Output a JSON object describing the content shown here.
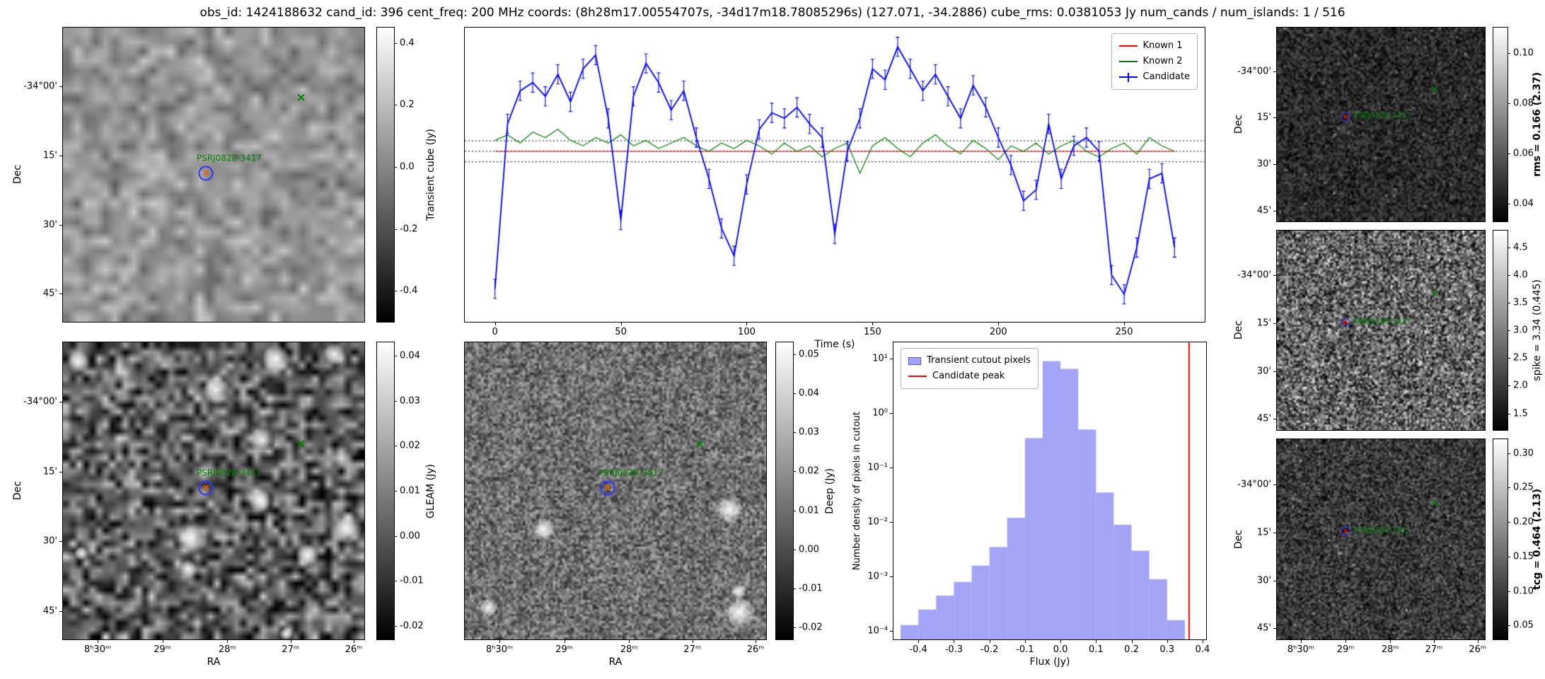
{
  "title": "obs_id: 1424188632 cand_id: 396 cent_freq: 200 MHz coords: (8h28m17.00554707s, -34d17m18.78085296s) (127.071, -34.2886) cube_rms: 0.0381053 Jy num_cands / num_islands: 1 / 516",
  "source_label": "PSRJ0828-3417",
  "glyphs": {
    "cross": "×"
  },
  "colors": {
    "annotation": "#008000",
    "cand_ring": "#3333ff",
    "cand_x": "#ff5500",
    "cand_dot": "#cc0000",
    "known1": "#ff0000",
    "known2": "#008000",
    "candidate": "#0000ff"
  },
  "axes": {
    "dec_label": "Dec",
    "ra_label": "RA",
    "dec_ticks": [
      "-34°00'",
      "15'",
      "30'",
      "45'"
    ],
    "ra_ticks": [
      "8ʰ30ᵐ",
      "29ᵐ",
      "28ᵐ",
      "27ᵐ",
      "26ᵐ"
    ]
  },
  "colorbars": {
    "transient": {
      "label": "Transient cube (Jy)",
      "vmin": -0.5,
      "vmax": 0.45,
      "ticks": [
        "0.4",
        "0.2",
        "0.0",
        "-0.2",
        "-0.4"
      ],
      "bold": false
    },
    "gleam": {
      "label": "GLEAM (Jy)",
      "vmin": -0.023,
      "vmax": 0.043,
      "ticks": [
        "0.04",
        "0.03",
        "0.02",
        "0.01",
        "0.00",
        "-0.01",
        "-0.02"
      ],
      "bold": false
    },
    "deep": {
      "label": "Deep (Jy)",
      "vmin": -0.023,
      "vmax": 0.053,
      "ticks": [
        "0.05",
        "0.04",
        "0.03",
        "0.02",
        "0.01",
        "0.00",
        "-0.01",
        "-0.02"
      ],
      "bold": false
    },
    "rms": {
      "label": "rms = 0.166 (2.37)",
      "vmin": 0.033,
      "vmax": 0.11,
      "ticks": [
        "0.10",
        "0.08",
        "0.06",
        "0.04"
      ],
      "bold": true
    },
    "spike": {
      "label": "spike = 3.34 (0.445)",
      "vmin": 1.2,
      "vmax": 4.8,
      "ticks": [
        "4.5",
        "4.0",
        "3.5",
        "3.0",
        "2.5",
        "2.0",
        "1.5"
      ],
      "bold": false
    },
    "tcg": {
      "label": "tcg = 0.464 (2.13)",
      "vmin": 0.03,
      "vmax": 0.32,
      "ticks": [
        "0.30",
        "0.25",
        "0.20",
        "0.15",
        "0.10",
        "0.05"
      ],
      "bold": true
    }
  },
  "panels": {
    "transient": {
      "cross": [
        0.79,
        0.24
      ],
      "cand": [
        0.475,
        0.495
      ],
      "label_pos": "above",
      "small": false
    },
    "gleam": {
      "cross": [
        0.79,
        0.345
      ],
      "cand": [
        0.475,
        0.49
      ],
      "label_pos": "above",
      "small": false
    },
    "deep": {
      "cross": [
        0.78,
        0.345
      ],
      "cand": [
        0.475,
        0.49
      ],
      "label_pos": "above",
      "small": false
    },
    "rms": {
      "cross": [
        0.76,
        0.32
      ],
      "cand": [
        0.33,
        0.46
      ],
      "label_pos": "right",
      "small": true
    },
    "spike": {
      "cross": [
        0.76,
        0.32
      ],
      "cand": [
        0.33,
        0.46
      ],
      "label_pos": "right",
      "small": true
    },
    "tcg": {
      "cross": [
        0.76,
        0.32
      ],
      "cand": [
        0.33,
        0.46
      ],
      "label_pos": "right",
      "small": true
    }
  },
  "noise": {
    "transient": {
      "seed": 11,
      "grid": 32,
      "base": 150,
      "amp": 60
    },
    "gleam": {
      "seed": 22,
      "grid": 46,
      "base": 95,
      "amp": 130,
      "blobs": 12,
      "blobR": 8
    },
    "deep": {
      "seed": 33,
      "grid": 130,
      "base": 112,
      "amp": 85,
      "blobs": 5,
      "blobR": 7,
      "blobsBottom": true
    },
    "rms": {
      "seed": 44,
      "grid": 100,
      "base": 42,
      "amp": 55,
      "speckle": 0.02,
      "speckleAmp": 90
    },
    "spike": {
      "seed": 55,
      "grid": 110,
      "base": 95,
      "amp": 130,
      "speckle": 0.06,
      "speckleAmp": 160
    },
    "tcg": {
      "seed": 66,
      "grid": 110,
      "base": 58,
      "amp": 70,
      "speckle": 0.012,
      "speckleAmp": 110
    }
  },
  "chart_data": [
    {
      "type": "line",
      "title": "",
      "xlabel": "Time (s)",
      "ylabel": "",
      "xlim": [
        -12,
        282
      ],
      "ylim": [
        -0.62,
        0.45
      ],
      "xticks": [
        0,
        50,
        100,
        150,
        200,
        250
      ],
      "hlines": [
        0.0381,
        0.0,
        -0.0381
      ],
      "legend_position": "top-right",
      "x": [
        0,
        5,
        10,
        15,
        20,
        25,
        30,
        35,
        40,
        45,
        50,
        55,
        60,
        65,
        70,
        75,
        80,
        85,
        90,
        95,
        100,
        105,
        110,
        115,
        120,
        125,
        130,
        135,
        140,
        145,
        150,
        155,
        160,
        165,
        170,
        175,
        180,
        185,
        190,
        195,
        200,
        205,
        210,
        215,
        220,
        225,
        230,
        235,
        240,
        245,
        250,
        255,
        260,
        265,
        270
      ],
      "series": [
        {
          "name": "Known 1",
          "color": "#ff0000",
          "constant": 0.0
        },
        {
          "name": "Known 2",
          "color": "#008000",
          "values": [
            0.04,
            0.06,
            0.03,
            0.07,
            0.05,
            0.08,
            0.04,
            0.02,
            0.05,
            0.03,
            0.06,
            0.02,
            0.04,
            0.01,
            0.03,
            0.05,
            0.02,
            0.0,
            0.03,
            0.01,
            0.04,
            0.02,
            -0.01,
            0.03,
            0.0,
            0.02,
            -0.02,
            0.01,
            0.03,
            -0.08,
            0.02,
            0.05,
            0.01,
            -0.02,
            0.03,
            0.06,
            0.02,
            -0.01,
            0.04,
            0.01,
            -0.03,
            0.02,
            0.0,
            0.03,
            -0.01,
            0.02,
            0.04,
            0.0,
            -0.02,
            0.01,
            0.03,
            -0.01,
            0.05,
            0.02,
            0.0
          ]
        },
        {
          "name": "Candidate",
          "color": "#0000ff",
          "err": 0.035,
          "values": [
            -0.5,
            0.1,
            0.22,
            0.25,
            0.2,
            0.28,
            0.18,
            0.3,
            0.35,
            0.12,
            -0.25,
            0.2,
            0.32,
            0.25,
            0.15,
            0.22,
            0.05,
            -0.1,
            -0.28,
            -0.38,
            -0.12,
            0.08,
            0.14,
            0.12,
            0.16,
            0.1,
            0.05,
            -0.3,
            0.0,
            0.12,
            0.3,
            0.26,
            0.38,
            0.3,
            0.22,
            0.28,
            0.2,
            0.12,
            0.24,
            0.16,
            0.05,
            -0.05,
            -0.18,
            -0.14,
            0.1,
            -0.1,
            0.02,
            0.05,
            0.0,
            -0.45,
            -0.52,
            -0.35,
            -0.1,
            -0.08,
            -0.35
          ]
        }
      ]
    },
    {
      "type": "bar",
      "title": "",
      "xlabel": "Flux (Jy)",
      "ylabel": "Number density of pixels in cutout",
      "bar_color": "rgba(90,90,240,0.55)",
      "peak_color": "#ff0000",
      "bin_width": 0.05,
      "centers": [
        -0.425,
        -0.375,
        -0.325,
        -0.275,
        -0.225,
        -0.175,
        -0.125,
        -0.075,
        -0.025,
        0.025,
        0.075,
        0.125,
        0.175,
        0.225,
        0.275,
        0.325
      ],
      "densities": [
        0.00013,
        0.00025,
        0.00045,
        0.0008,
        0.0016,
        0.0035,
        0.012,
        0.35,
        9.0,
        6.5,
        0.5,
        0.035,
        0.009,
        0.003,
        0.0009,
        0.00016
      ],
      "candidate_peak": 0.362,
      "xlim": [
        -0.47,
        0.41
      ],
      "ylog_lim": [
        -4.15,
        1.3
      ],
      "xticks": [
        -0.4,
        -0.3,
        -0.2,
        -0.1,
        0.0,
        0.1,
        0.2,
        0.3,
        0.4
      ],
      "yticks": [
        {
          "exp": 1,
          "label": "10¹"
        },
        {
          "exp": 0,
          "label": "10⁰"
        },
        {
          "exp": -1,
          "label": "10⁻¹"
        },
        {
          "exp": -2,
          "label": "10⁻²"
        },
        {
          "exp": -3,
          "label": "10⁻³"
        },
        {
          "exp": -4,
          "label": "10⁻⁴"
        }
      ],
      "legend": [
        "Transient cutout pixels",
        "Candidate peak"
      ],
      "legend_position": "top-left"
    }
  ]
}
